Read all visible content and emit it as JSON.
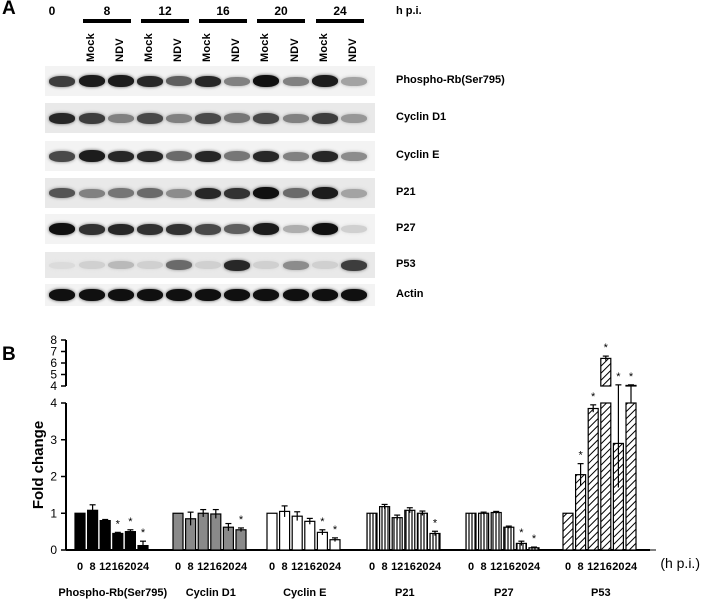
{
  "panel_a": {
    "letter": "A",
    "time_zero": "0",
    "time_points": [
      "8",
      "12",
      "16",
      "20",
      "24"
    ],
    "time_unit": "h p.i.",
    "lane_labels": [
      "Mock",
      "NDV",
      "Mock",
      "NDV",
      "Mock",
      "NDV",
      "Mock",
      "NDV",
      "Mock",
      "NDV"
    ],
    "blots": [
      {
        "label": "Phospho-Rb(Ser795)",
        "intensities": [
          0.75,
          0.9,
          0.9,
          0.85,
          0.6,
          0.85,
          0.45,
          0.95,
          0.45,
          0.9,
          0.3
        ]
      },
      {
        "label": "Cyclin D1",
        "intensities": [
          0.85,
          0.75,
          0.45,
          0.7,
          0.45,
          0.7,
          0.5,
          0.7,
          0.45,
          0.75,
          0.35
        ]
      },
      {
        "label": "Cyclin E",
        "intensities": [
          0.7,
          0.9,
          0.85,
          0.85,
          0.55,
          0.85,
          0.5,
          0.85,
          0.45,
          0.85,
          0.4
        ]
      },
      {
        "label": "P21",
        "intensities": [
          0.65,
          0.45,
          0.5,
          0.55,
          0.4,
          0.85,
          0.8,
          0.95,
          0.55,
          0.9,
          0.3
        ]
      },
      {
        "label": "P27",
        "intensities": [
          0.95,
          0.8,
          0.85,
          0.8,
          0.8,
          0.7,
          0.6,
          0.9,
          0.25,
          0.95,
          0.1
        ]
      },
      {
        "label": "P53",
        "intensities": [
          0.05,
          0.1,
          0.2,
          0.1,
          0.55,
          0.1,
          0.85,
          0.1,
          0.4,
          0.1,
          0.75
        ]
      },
      {
        "label": "Actin",
        "intensities": [
          0.95,
          0.95,
          0.95,
          0.95,
          0.95,
          0.95,
          0.95,
          0.95,
          0.95,
          0.95,
          0.95
        ]
      }
    ]
  },
  "panel_b": {
    "letter": "B",
    "x_unit": "(h p.i.)",
    "break_asterisk": "*"
  },
  "chart_data": {
    "type": "bar",
    "ylabel": "Fold change",
    "x_unit": "(h p.i.)",
    "ylim_lower": [
      0,
      4
    ],
    "ylim_upper": [
      4,
      8
    ],
    "yticks_lower": [
      "0",
      "1",
      "2",
      "3",
      "4"
    ],
    "yticks_upper": [
      "4",
      "5",
      "6",
      "7",
      "8"
    ],
    "categories": [
      "0",
      "8",
      "12",
      "16",
      "20",
      "24"
    ],
    "groups": [
      {
        "name": "Phospho-Rb(Ser795)",
        "fill": "black",
        "values": [
          1.0,
          1.08,
          0.8,
          0.45,
          0.5,
          0.12
        ],
        "errors": [
          0.0,
          0.15,
          0.03,
          0.03,
          0.05,
          0.12
        ],
        "significant": [
          false,
          false,
          false,
          true,
          true,
          true
        ]
      },
      {
        "name": "Cyclin D1",
        "fill": "grey",
        "values": [
          1.0,
          0.85,
          1.0,
          0.98,
          0.62,
          0.55
        ],
        "errors": [
          0.0,
          0.18,
          0.1,
          0.12,
          0.1,
          0.05
        ],
        "significant": [
          false,
          false,
          false,
          false,
          false,
          true
        ]
      },
      {
        "name": "Cyclin E",
        "fill": "white",
        "values": [
          1.0,
          1.05,
          0.92,
          0.78,
          0.48,
          0.28
        ],
        "errors": [
          0.0,
          0.15,
          0.12,
          0.08,
          0.07,
          0.05
        ],
        "significant": [
          false,
          false,
          false,
          false,
          true,
          true
        ]
      },
      {
        "name": "P21",
        "fill": "vertical",
        "values": [
          1.0,
          1.18,
          0.88,
          1.08,
          1.0,
          0.45
        ],
        "errors": [
          0.0,
          0.06,
          0.07,
          0.07,
          0.06,
          0.06
        ],
        "significant": [
          false,
          false,
          false,
          false,
          false,
          true
        ]
      },
      {
        "name": "P27",
        "fill": "vertical",
        "values": [
          1.0,
          1.0,
          1.02,
          0.62,
          0.18,
          0.06
        ],
        "errors": [
          0.0,
          0.03,
          0.03,
          0.03,
          0.06,
          0.02
        ],
        "significant": [
          false,
          false,
          false,
          false,
          true,
          true
        ]
      },
      {
        "name": "P53",
        "fill": "diagonal",
        "values": [
          1.0,
          2.05,
          3.85,
          6.4,
          2.9,
          4.05
        ],
        "errors": [
          0.0,
          0.3,
          0.1,
          0.2,
          1.2,
          0.05
        ],
        "significant": [
          false,
          true,
          true,
          true,
          true,
          true
        ]
      }
    ]
  }
}
